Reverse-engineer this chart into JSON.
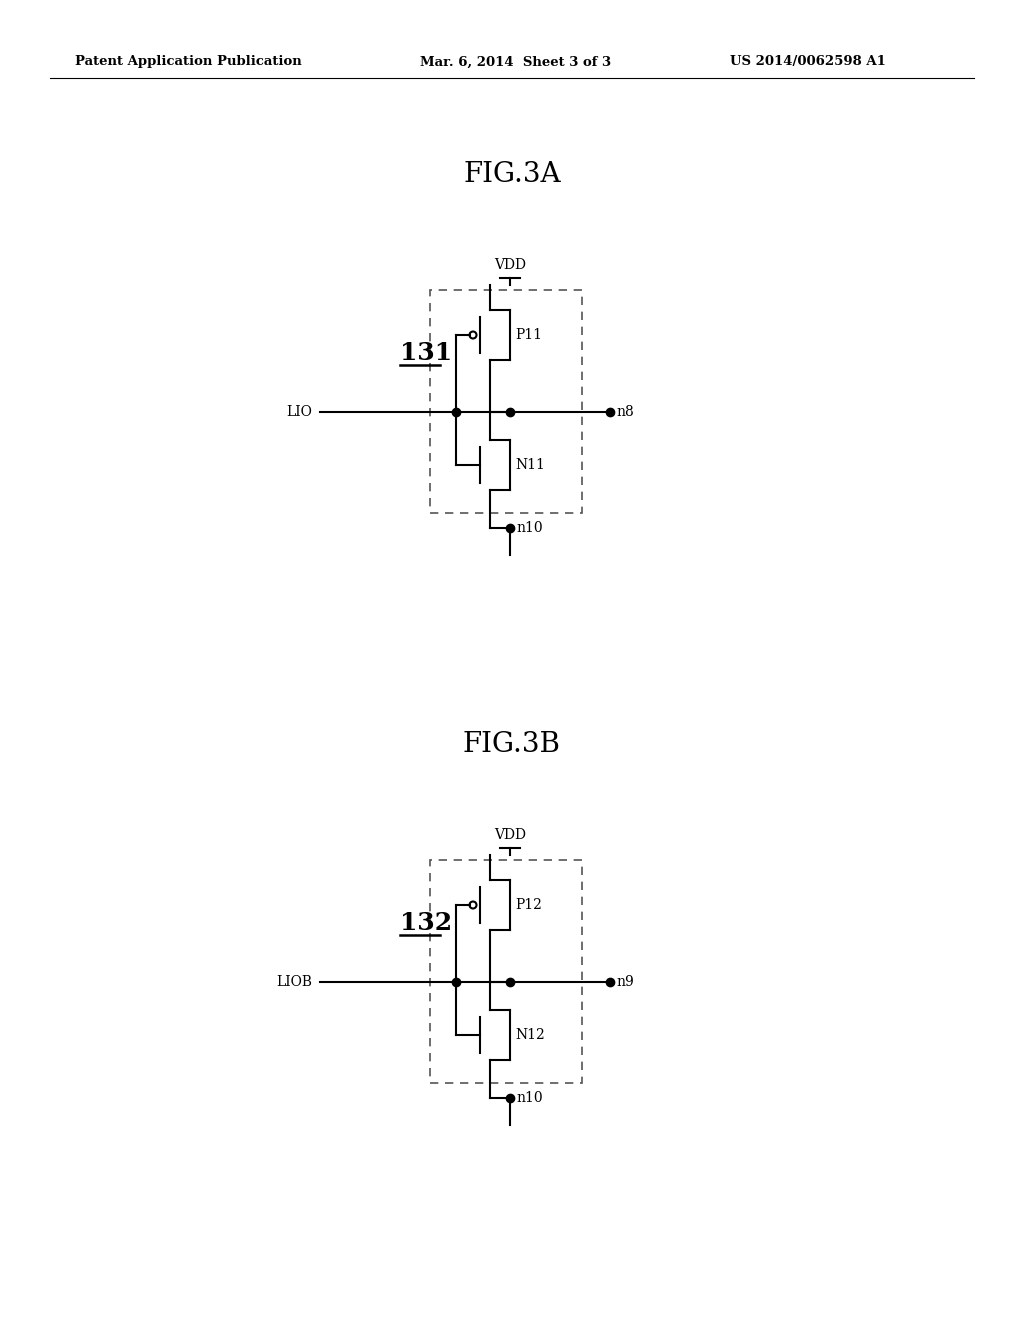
{
  "header_left": "Patent Application Publication",
  "header_mid": "Mar. 6, 2014  Sheet 3 of 3",
  "header_right": "US 2014/0062598 A1",
  "fig3a_label": "FIG.3A",
  "fig3b_label": "FIG.3B",
  "block131_label": "131",
  "block132_label": "132",
  "vdd_label": "VDD",
  "lio_label": "LIO",
  "liob_label": "LIOB",
  "n8_label": "n8",
  "n9_label": "n9",
  "n10_label": "n10",
  "p11_label": "P11",
  "n11_label": "N11",
  "p12_label": "P12",
  "n12_label": "N12",
  "bg_color": "#ffffff",
  "line_color": "#000000",
  "dashed_color": "#555555",
  "header_line_color": "#000000"
}
